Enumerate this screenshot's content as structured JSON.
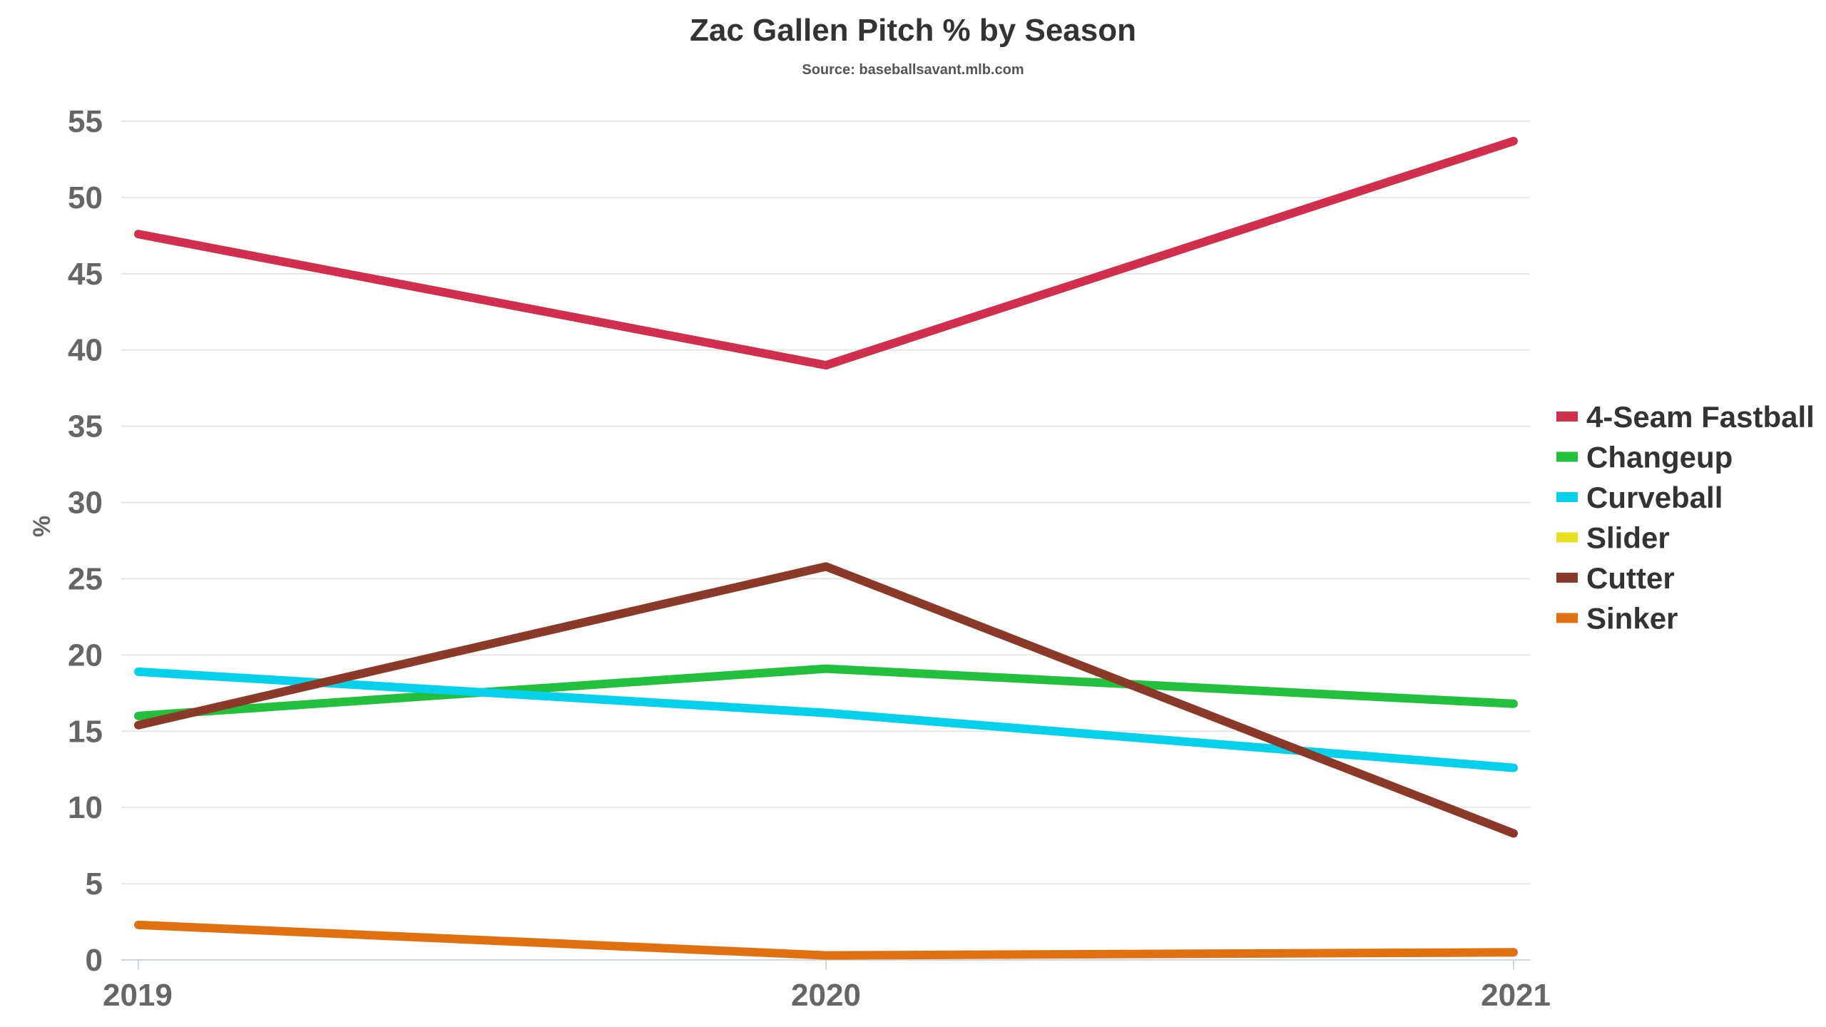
{
  "chart_data": {
    "type": "line",
    "title": "Zac Gallen Pitch % by Season",
    "subtitle": "Source: baseballsavant.mlb.com",
    "xlabel": "",
    "ylabel": "%",
    "categories": [
      "2019",
      "2020",
      "2021"
    ],
    "ylim": [
      0,
      55
    ],
    "yticks": [
      0,
      5,
      10,
      15,
      20,
      25,
      30,
      35,
      40,
      45,
      50,
      55
    ],
    "grid": true,
    "legend_position": "right",
    "series": [
      {
        "name": "4-Seam Fastball",
        "color": "#d0304d",
        "values": [
          47.6,
          39.0,
          53.7
        ]
      },
      {
        "name": "Changeup",
        "color": "#22c03c",
        "values": [
          16.0,
          19.1,
          16.8
        ]
      },
      {
        "name": "Curveball",
        "color": "#06d0ea",
        "values": [
          18.9,
          16.2,
          12.6
        ]
      },
      {
        "name": "Slider",
        "color": "#e8e020",
        "values": [
          null,
          null,
          null
        ]
      },
      {
        "name": "Cutter",
        "color": "#8b3a2a",
        "values": [
          15.4,
          25.8,
          8.3
        ]
      },
      {
        "name": "Sinker",
        "color": "#e07010",
        "values": [
          2.3,
          0.3,
          0.5
        ]
      }
    ]
  }
}
